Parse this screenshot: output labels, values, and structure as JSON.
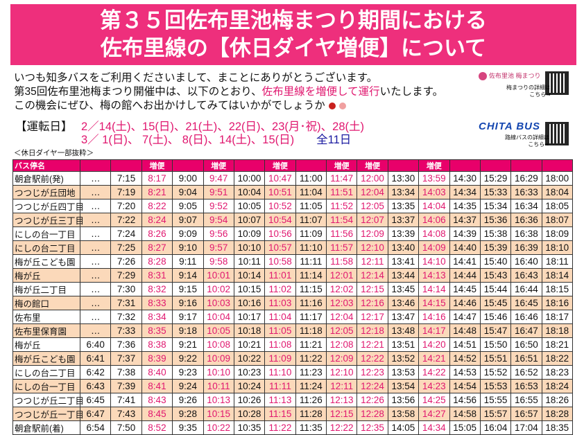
{
  "title": {
    "line1": "第３５回佐布里池梅まつり期間における",
    "line2": "佐布里線の【休日ダイヤ増便】について"
  },
  "intro": {
    "line1": "いつも知多バスをご利用くださいまして、まことにありがとうございます。",
    "line2_a": "第35回佐布里池梅まつり開催中は、以下のとおり、",
    "line2_b": "佐布里線を増便して運行",
    "line2_c": "いたします。",
    "line3": "この機会にぜひ、梅の館へお出かけしてみてはいかがでしょうか"
  },
  "schedule": {
    "label": "【運転日】",
    "line1": "2／14(土)、15(日)、21(土)、22(日)、23(月･祝)、28(土)",
    "line2": "3／ 1(日)、 7(土)、 8(日)、14(土)、15(日)",
    "total": "全11日"
  },
  "side": {
    "ume_logo": "佐布里池 梅まつり",
    "ume_text1": "梅まつりの詳細は",
    "ume_text2": "こちら➡",
    "bus_logo": "CHITA BUS",
    "bus_text1": "路線バスの詳細は",
    "bus_text2": "こちら➡"
  },
  "caption": "＜休日ダイヤ一部抜粋＞",
  "colors": {
    "accent": "#e8006a",
    "row_alt": "#fbd9ba",
    "extra_text": "#e0176f"
  },
  "table": {
    "header_label": "バス停名",
    "extra_label": "増便",
    "extra_columns": [
      3,
      5,
      7,
      9,
      10,
      12
    ],
    "rows": [
      [
        "朝倉駅前(発)",
        "…",
        "7:15",
        "8:17",
        "9:00",
        "9:47",
        "10:00",
        "10:47",
        "11:00",
        "11:47",
        "12:00",
        "13:30",
        "13:59",
        "14:30",
        "15:29",
        "16:29",
        "18:00"
      ],
      [
        "つつじが丘団地",
        "…",
        "7:19",
        "8:21",
        "9:04",
        "9:51",
        "10:04",
        "10:51",
        "11:04",
        "11:51",
        "12:04",
        "13:34",
        "14:03",
        "14:34",
        "15:33",
        "16:33",
        "18:04"
      ],
      [
        "つつじが丘四丁目",
        "…",
        "7:20",
        "8:22",
        "9:05",
        "9:52",
        "10:05",
        "10:52",
        "11:05",
        "11:52",
        "12:05",
        "13:35",
        "14:04",
        "14:35",
        "15:34",
        "16:34",
        "18:05"
      ],
      [
        "つつじが丘三丁目",
        "…",
        "7:22",
        "8:24",
        "9:07",
        "9:54",
        "10:07",
        "10:54",
        "11:07",
        "11:54",
        "12:07",
        "13:37",
        "14:06",
        "14:37",
        "15:36",
        "16:36",
        "18:07"
      ],
      [
        "にしの台一丁目",
        "…",
        "7:24",
        "8:26",
        "9:09",
        "9:56",
        "10:09",
        "10:56",
        "11:09",
        "11:56",
        "12:09",
        "13:39",
        "14:08",
        "14:39",
        "15:38",
        "16:38",
        "18:09"
      ],
      [
        "にしの台二丁目",
        "…",
        "7:25",
        "8:27",
        "9:10",
        "9:57",
        "10:10",
        "10:57",
        "11:10",
        "11:57",
        "12:10",
        "13:40",
        "14:09",
        "14:40",
        "15:39",
        "16:39",
        "18:10"
      ],
      [
        "梅が丘こども園",
        "…",
        "7:26",
        "8:28",
        "9:11",
        "9:58",
        "10:11",
        "10:58",
        "11:11",
        "11:58",
        "12:11",
        "13:41",
        "14:10",
        "14:41",
        "15:40",
        "16:40",
        "18:11"
      ],
      [
        "梅が丘",
        "…",
        "7:29",
        "8:31",
        "9:14",
        "10:01",
        "10:14",
        "11:01",
        "11:14",
        "12:01",
        "12:14",
        "13:44",
        "14:13",
        "14:44",
        "15:43",
        "16:43",
        "18:14"
      ],
      [
        "梅が丘二丁目",
        "…",
        "7:30",
        "8:32",
        "9:15",
        "10:02",
        "10:15",
        "11:02",
        "11:15",
        "12:02",
        "12:15",
        "13:45",
        "14:14",
        "14:45",
        "15:44",
        "16:44",
        "18:15"
      ],
      [
        "梅の館口",
        "…",
        "7:31",
        "8:33",
        "9:16",
        "10:03",
        "10:16",
        "11:03",
        "11:16",
        "12:03",
        "12:16",
        "13:46",
        "14:15",
        "14:46",
        "15:45",
        "16:45",
        "18:16"
      ],
      [
        "佐布里",
        "…",
        "7:32",
        "8:34",
        "9:17",
        "10:04",
        "10:17",
        "11:04",
        "11:17",
        "12:04",
        "12:17",
        "13:47",
        "14:16",
        "14:47",
        "15:46",
        "16:46",
        "18:17"
      ],
      [
        "佐布里保育園",
        "…",
        "7:33",
        "8:35",
        "9:18",
        "10:05",
        "10:18",
        "11:05",
        "11:18",
        "12:05",
        "12:18",
        "13:48",
        "14:17",
        "14:48",
        "15:47",
        "16:47",
        "18:18"
      ],
      [
        "梅が丘",
        "6:40",
        "7:36",
        "8:38",
        "9:21",
        "10:08",
        "10:21",
        "11:08",
        "11:21",
        "12:08",
        "12:21",
        "13:51",
        "14:20",
        "14:51",
        "15:50",
        "16:50",
        "18:21"
      ],
      [
        "梅が丘こども園",
        "6:41",
        "7:37",
        "8:39",
        "9:22",
        "10:09",
        "10:22",
        "11:09",
        "11:22",
        "12:09",
        "12:22",
        "13:52",
        "14:21",
        "14:52",
        "15:51",
        "16:51",
        "18:22"
      ],
      [
        "にしの台二丁目",
        "6:42",
        "7:38",
        "8:40",
        "9:23",
        "10:10",
        "10:23",
        "11:10",
        "11:23",
        "12:10",
        "12:23",
        "13:53",
        "14:22",
        "14:53",
        "15:52",
        "16:52",
        "18:23"
      ],
      [
        "にしの台一丁目",
        "6:43",
        "7:39",
        "8:41",
        "9:24",
        "10:11",
        "10:24",
        "11:11",
        "11:24",
        "12:11",
        "12:24",
        "13:54",
        "14:23",
        "14:54",
        "15:53",
        "16:53",
        "18:24"
      ],
      [
        "つつじが丘二丁目",
        "6:45",
        "7:41",
        "8:43",
        "9:26",
        "10:13",
        "10:26",
        "11:13",
        "11:26",
        "12:13",
        "12:26",
        "13:56",
        "14:25",
        "14:56",
        "15:55",
        "16:55",
        "18:26"
      ],
      [
        "つつじが丘一丁目",
        "6:47",
        "7:43",
        "8:45",
        "9:28",
        "10:15",
        "10:28",
        "11:15",
        "11:28",
        "12:15",
        "12:28",
        "13:58",
        "14:27",
        "14:58",
        "15:57",
        "16:57",
        "18:28"
      ],
      [
        "朝倉駅前(着)",
        "6:54",
        "7:50",
        "8:52",
        "9:35",
        "10:22",
        "10:35",
        "11:22",
        "11:35",
        "12:22",
        "12:35",
        "14:05",
        "14:34",
        "15:05",
        "16:04",
        "17:04",
        "18:35"
      ]
    ]
  }
}
